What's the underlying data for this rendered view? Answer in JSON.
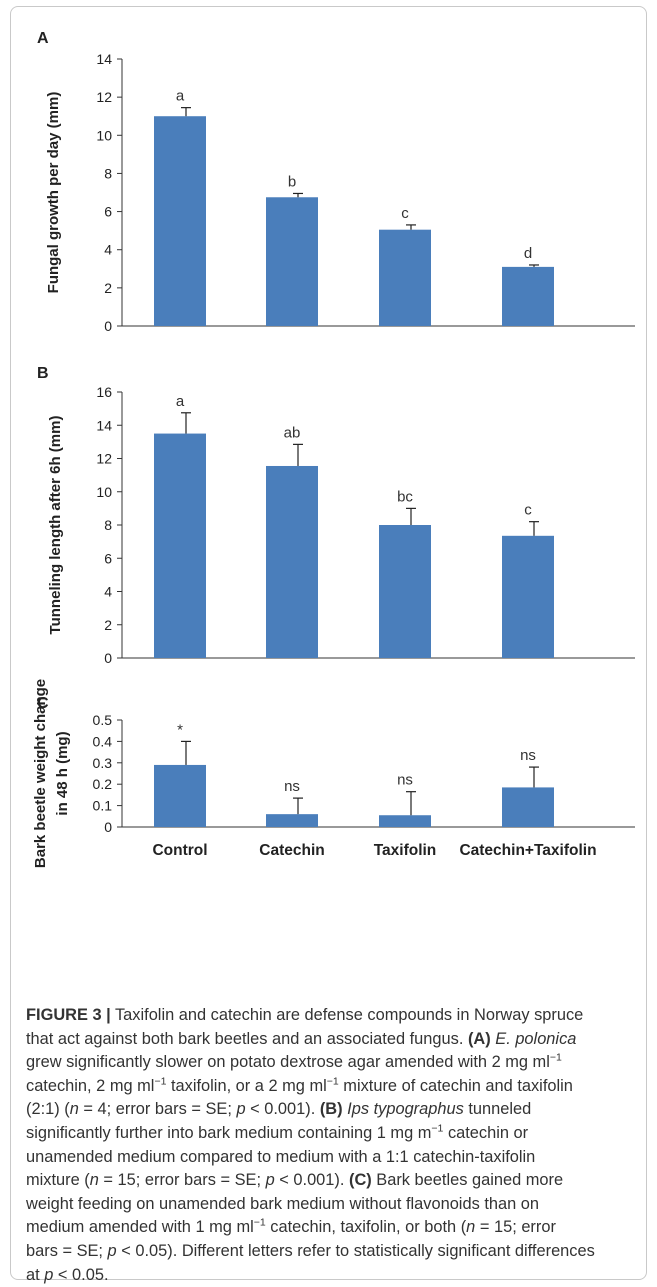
{
  "chart_data": [
    {
      "type": "bar",
      "panel_label": "A",
      "categories": [
        "Control",
        "Catechin",
        "Taxifolin",
        "Catechin+Taxifolin"
      ],
      "values": [
        11.0,
        6.75,
        5.05,
        3.1
      ],
      "errors": [
        0.45,
        0.2,
        0.25,
        0.1
      ],
      "labels": [
        "a",
        "b",
        "c",
        "d"
      ],
      "ylabel": "Fungal growth per day (mm)",
      "ylim": [
        0,
        14
      ],
      "yticks": [
        "0",
        "2",
        "4",
        "6",
        "8",
        "10",
        "12",
        "14"
      ],
      "color": "#4a7ebb"
    },
    {
      "type": "bar",
      "panel_label": "B",
      "categories": [
        "Control",
        "Catechin",
        "Taxifolin",
        "Catechin+Taxifolin"
      ],
      "values": [
        13.5,
        11.55,
        8.0,
        7.35
      ],
      "errors": [
        1.25,
        1.3,
        1.0,
        0.85
      ],
      "labels": [
        "a",
        "ab",
        "bc",
        "c"
      ],
      "ylabel": "Tunneling length after 6h (mm)",
      "ylim": [
        0,
        16
      ],
      "yticks": [
        "0",
        "2",
        "4",
        "6",
        "8",
        "10",
        "12",
        "14",
        "16"
      ],
      "color": "#4a7ebb"
    },
    {
      "type": "bar",
      "panel_label": "C",
      "categories": [
        "Control",
        "Catechin",
        "Taxifolin",
        "Catechin+Taxifolin"
      ],
      "values": [
        0.29,
        0.06,
        0.055,
        0.185
      ],
      "errors": [
        0.11,
        0.075,
        0.11,
        0.095
      ],
      "labels": [
        "*",
        "ns",
        "ns",
        "ns"
      ],
      "ylabel": "Bark beetle weight change in 48 h (mg)",
      "ylabel_lines": [
        "Bark beetle weight change",
        "in 48 h (mg)"
      ],
      "ylim": [
        0,
        0.5
      ],
      "yticks": [
        "0",
        "0.1",
        "0.2",
        "0.3",
        "0.4",
        "0.5"
      ],
      "color": "#4a7ebb"
    }
  ],
  "caption": {
    "label": "FIGURE 3 |",
    "lines": [
      [
        {
          "t": " Taxifolin and catechin are defense compounds in Norway spruce"
        }
      ],
      [
        {
          "t": "that act against both bark beetles and an associated fungus. "
        },
        {
          "t": "(A)",
          "s": "b"
        },
        {
          "t": " "
        },
        {
          "t": "E. polonica",
          "s": "i"
        }
      ],
      [
        {
          "t": "grew significantly slower on potato dextrose agar amended with 2 mg ml"
        },
        {
          "t": "−1",
          "s": "sup"
        }
      ],
      [
        {
          "t": "catechin, 2 mg ml"
        },
        {
          "t": "−1",
          "s": "sup"
        },
        {
          "t": " taxifolin, or a 2 mg ml"
        },
        {
          "t": "−1",
          "s": "sup"
        },
        {
          "t": " mixture of catechin and taxifolin"
        }
      ],
      [
        {
          "t": "(2:1) ("
        },
        {
          "t": "n",
          "s": "i"
        },
        {
          "t": " = 4; error bars = SE; "
        },
        {
          "t": "p",
          "s": "i"
        },
        {
          "t": " < 0.001). "
        },
        {
          "t": "(B)",
          "s": "b"
        },
        {
          "t": " "
        },
        {
          "t": "Ips typographus",
          "s": "i"
        },
        {
          "t": " tunneled"
        }
      ],
      [
        {
          "t": "significantly further into bark medium containing 1 mg m"
        },
        {
          "t": "−1",
          "s": "sup"
        },
        {
          "t": " catechin or"
        }
      ],
      [
        {
          "t": "unamended medium compared to medium with a 1:1 catechin-taxifolin"
        }
      ],
      [
        {
          "t": "mixture ("
        },
        {
          "t": "n",
          "s": "i"
        },
        {
          "t": " = 15; error bars = SE; "
        },
        {
          "t": "p",
          "s": "i"
        },
        {
          "t": " < 0.001). "
        },
        {
          "t": "(C)",
          "s": "b"
        },
        {
          "t": " Bark beetles gained more"
        }
      ],
      [
        {
          "t": "weight feeding on unamended bark medium without flavonoids than on"
        }
      ],
      [
        {
          "t": "medium amended with 1 mg ml"
        },
        {
          "t": "−1",
          "s": "sup"
        },
        {
          "t": " catechin, taxifolin, or both ("
        },
        {
          "t": "n",
          "s": "i"
        },
        {
          "t": " = 15; error"
        }
      ],
      [
        {
          "t": "bars = SE; "
        },
        {
          "t": "p",
          "s": "i"
        },
        {
          "t": " < 0.05). Different letters refer to statistically significant differences"
        }
      ],
      [
        {
          "t": "at "
        },
        {
          "t": "p",
          "s": "i"
        },
        {
          "t": " < 0.05."
        }
      ]
    ]
  }
}
